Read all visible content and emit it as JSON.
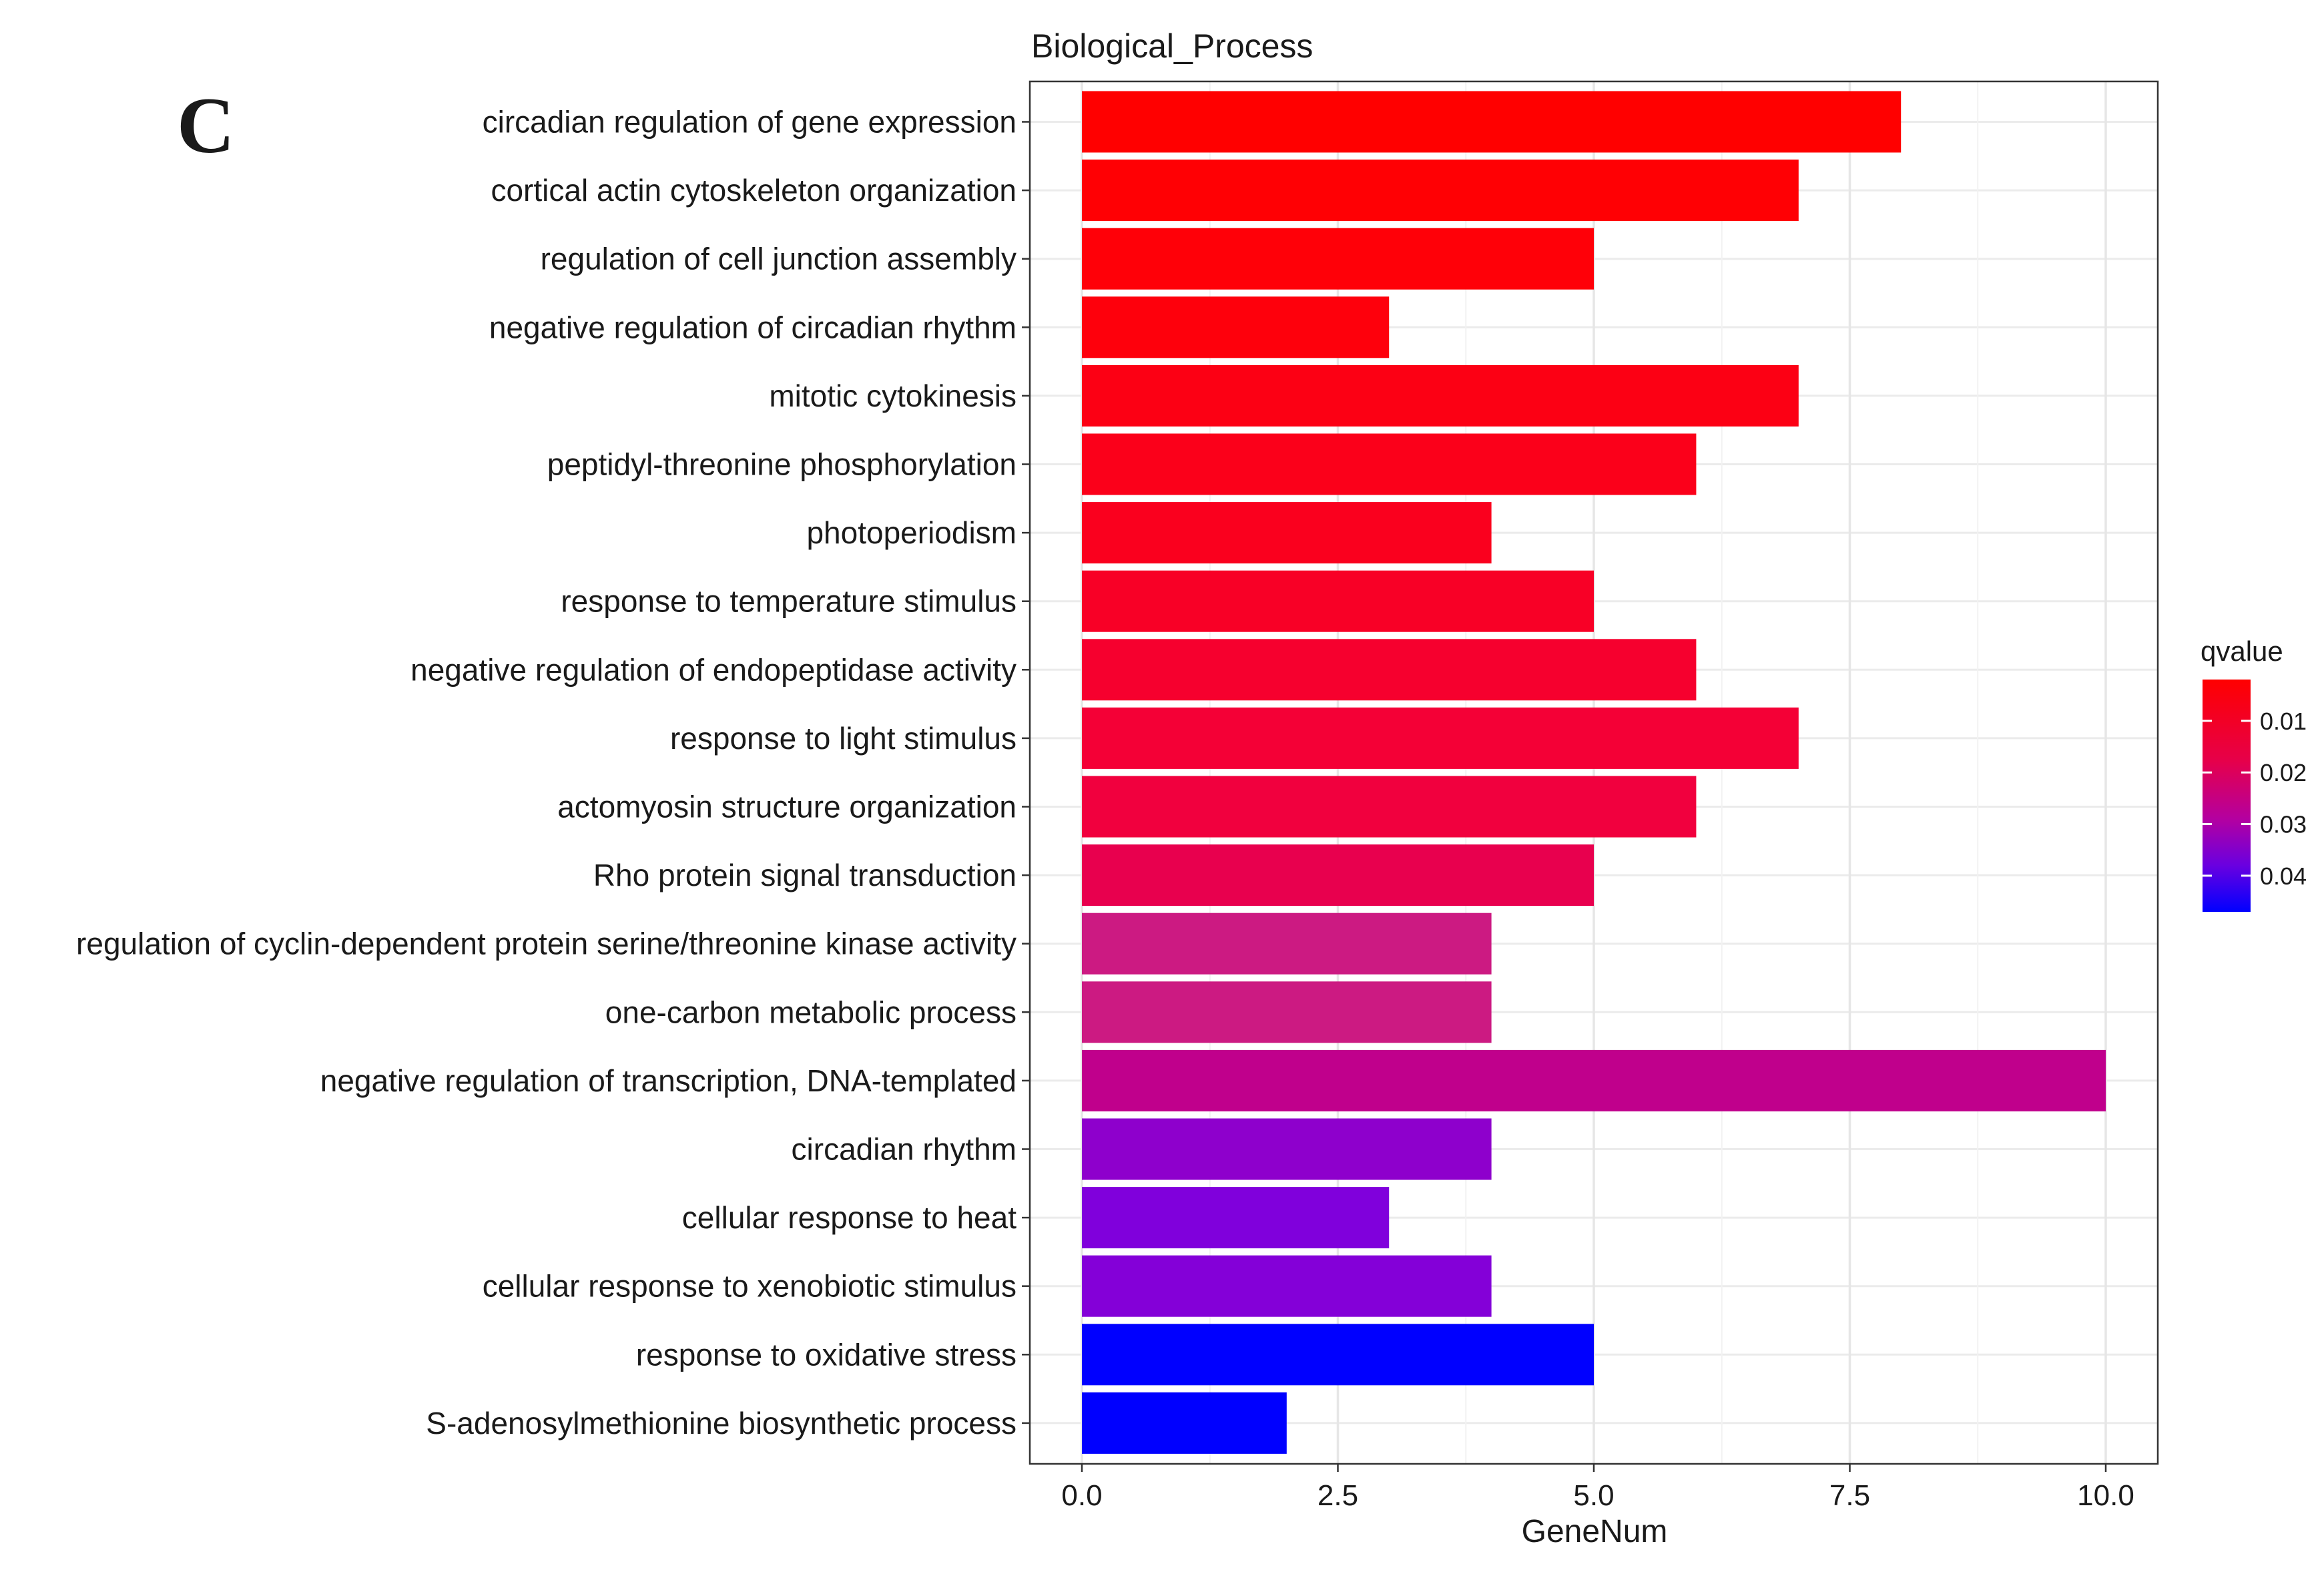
{
  "panel_label": "C",
  "chart_data": {
    "type": "bar",
    "orientation": "horizontal",
    "title": "Biological_Process",
    "xlabel": "GeneNum",
    "ylabel": "",
    "xlim": [
      0,
      10.5
    ],
    "x_ticks": [
      0,
      2.5,
      5,
      7.5,
      10
    ],
    "x_tick_labels": [
      "0.0",
      "2.5",
      "5.0",
      "7.5",
      "10.0"
    ],
    "grid": true,
    "categories": [
      "circadian regulation of gene expression",
      "cortical actin cytoskeleton organization",
      "regulation of cell junction assembly",
      "negative regulation of circadian rhythm",
      "mitotic cytokinesis",
      "peptidyl-threonine phosphorylation",
      "photoperiodism",
      "response to temperature stimulus",
      "negative regulation of endopeptidase activity",
      "response to light stimulus",
      "actomyosin structure organization",
      "Rho protein signal transduction",
      "regulation of cyclin-dependent protein serine/threonine kinase activity",
      "one-carbon metabolic process",
      "negative regulation of transcription, DNA-templated",
      "circadian rhythm",
      "cellular response to heat",
      "cellular response to xenobiotic stimulus",
      "response to oxidative stress",
      "S-adenosylmethionine biosynthetic process"
    ],
    "values": [
      8,
      7,
      5,
      3,
      7,
      6,
      4,
      5,
      6,
      7,
      6,
      5,
      4,
      4,
      10,
      4,
      3,
      4,
      5,
      2
    ],
    "colors": [
      "#ff0000",
      "#ff0004",
      "#ff0008",
      "#fe000c",
      "#fc0014",
      "#fb001a",
      "#fa001e",
      "#f80026",
      "#f6002e",
      "#f40036",
      "#f1003e",
      "#e8004e",
      "#cc1a82",
      "#cc1a82",
      "#c0008c",
      "#8e00cc",
      "#8000dc",
      "#8400d8",
      "#0000ff",
      "#0000ff"
    ],
    "legend": {
      "title": "qvalue",
      "placement": "right",
      "ticks": [
        "0.01",
        "0.02",
        "0.03",
        "0.04"
      ],
      "range": [
        0.002,
        0.047
      ],
      "low_color": "#ff0000",
      "high_color": "#0000ff"
    }
  }
}
